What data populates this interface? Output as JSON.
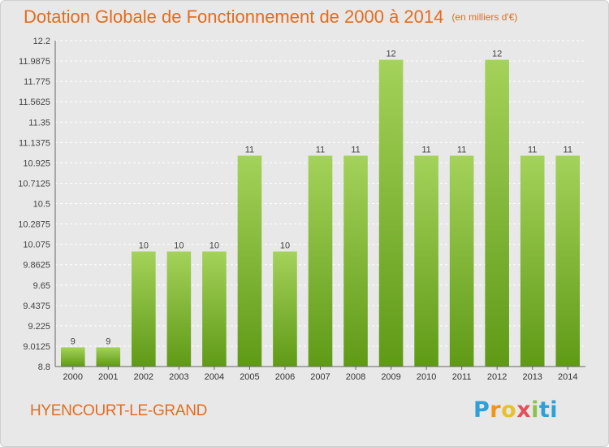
{
  "header": {
    "title": "Dotation Globale de Fonctionnement de 2000 à 2014",
    "unit": "(en milliers d'€)"
  },
  "footer": {
    "commune": "HYENCOURT-LE-GRAND",
    "logo_letters": [
      "P",
      "r",
      "o",
      "x",
      "i",
      "ti"
    ]
  },
  "colors": {
    "title": "#e46c1e",
    "bar_top": "#a4d25a",
    "bar_bottom": "#5f9a16",
    "background": "#e8e8e8",
    "grid": "#ffffff"
  },
  "chart_data": {
    "type": "bar",
    "title": "Dotation Globale de Fonctionnement de 2000 à 2014",
    "subtitle": "(en milliers d'€)",
    "categories": [
      "2000",
      "2001",
      "2002",
      "2003",
      "2004",
      "2005",
      "2006",
      "2007",
      "2008",
      "2009",
      "2010",
      "2011",
      "2012",
      "2013",
      "2014"
    ],
    "values": [
      9,
      9,
      10,
      10,
      10,
      11,
      10,
      11,
      11,
      12,
      11,
      11,
      12,
      11,
      11
    ],
    "bar_values": [
      9.0,
      9.0,
      10.0,
      10.0,
      10.0,
      11.0,
      10.0,
      11.0,
      11.0,
      12.0,
      11.0,
      11.0,
      12.0,
      11.0,
      11.0
    ],
    "data_labels": [
      "9",
      "9",
      "10",
      "10",
      "10",
      "11",
      "10",
      "11",
      "11",
      "12",
      "11",
      "11",
      "12",
      "11",
      "11"
    ],
    "yticks": [
      8.8,
      9.0125,
      9.225,
      9.4375,
      9.65,
      9.8625,
      10.075,
      10.2875,
      10.5,
      10.7125,
      10.925,
      11.1375,
      11.35,
      11.5625,
      11.775,
      11.9875,
      12.2
    ],
    "ytick_labels": [
      "8.8",
      "9.0125",
      "9.225",
      "9.4375",
      "9.65",
      "9.8625",
      "10.075",
      "10.2875",
      "10.5",
      "10.7125",
      "10.925",
      "11.1375",
      "11.35",
      "11.5625",
      "11.775",
      "11.9875",
      "12.2"
    ],
    "ylim": [
      8.8,
      12.2
    ],
    "xlabel": "",
    "ylabel": "",
    "grid": true,
    "legend": "none"
  }
}
